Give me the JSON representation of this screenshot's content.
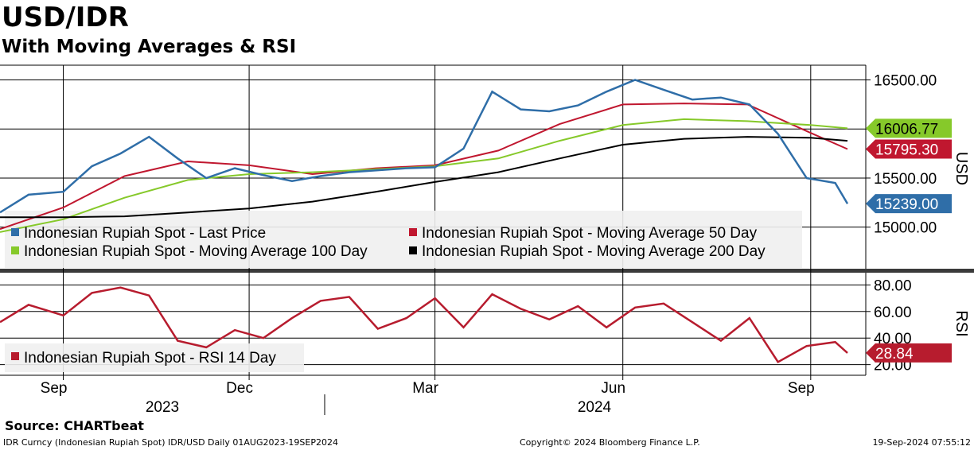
{
  "title": "USD/IDR",
  "subtitle": "With Moving Averages & RSI",
  "source": "Source: CHARTbeat",
  "footer": {
    "left": "IDR Curncy (Indonesian Rupiah Spot) IDR/USD  Daily 01AUG2023-19SEP2024",
    "center": "Copyright© 2024 Bloomberg Finance L.P.",
    "right": "19-Sep-2024 07:55:12"
  },
  "colors": {
    "price": "#2f6ea8",
    "ma50": "#c0172f",
    "ma100": "#86c92a",
    "ma200": "#000000",
    "rsi": "#b71c2e"
  },
  "chart_data": [
    {
      "type": "line",
      "title": "USD/IDR",
      "ylabel": "USD",
      "ylim": [
        14560,
        16650
      ],
      "yticks": [
        15000,
        15500,
        16000,
        16500
      ],
      "ytick_labels": [
        "15000.00",
        "15500.00",
        "",
        "16500.00"
      ],
      "date_range": [
        "2023-08-01",
        "2024-09-19"
      ],
      "x_ticks": [
        "Sep",
        "Dec",
        "Mar",
        "Jun",
        "Sep"
      ],
      "x_tick_dates": [
        "2023-09-01",
        "2023-12-01",
        "2024-03-01",
        "2024-06-01",
        "2024-09-01"
      ],
      "years": [
        "2023",
        "2024"
      ],
      "legend": [
        "Indonesian Rupiah Spot - Last Price",
        "Indonesian Rupiah Spot - Moving Average 50 Day",
        "Indonesian Rupiah Spot - Moving Average 100 Day",
        "Indonesian Rupiah Spot - Moving Average 200 Day"
      ],
      "end_labels": [
        {
          "name": "Moving Average 100 Day",
          "value": 16006.77,
          "label": "16006.77"
        },
        {
          "name": "Moving Average 50 Day",
          "value": 15795.3,
          "label": "15795.30"
        },
        {
          "name": "Last Price",
          "value": 15239.0,
          "label": "15239.00"
        }
      ],
      "series": [
        {
          "name": "Last Price",
          "dates": [
            "2023-08-01",
            "2023-08-15",
            "2023-09-01",
            "2023-09-15",
            "2023-09-29",
            "2023-10-13",
            "2023-10-27",
            "2023-11-10",
            "2023-11-24",
            "2023-12-08",
            "2023-12-22",
            "2024-01-05",
            "2024-01-19",
            "2024-02-02",
            "2024-02-16",
            "2024-03-01",
            "2024-03-15",
            "2024-03-29",
            "2024-04-12",
            "2024-04-26",
            "2024-05-10",
            "2024-05-24",
            "2024-06-07",
            "2024-06-21",
            "2024-07-05",
            "2024-07-19",
            "2024-08-02",
            "2024-08-16",
            "2024-08-30",
            "2024-09-13",
            "2024-09-19"
          ],
          "values": [
            15150,
            15330,
            15360,
            15620,
            15750,
            15920,
            15700,
            15500,
            15600,
            15530,
            15470,
            15520,
            15560,
            15580,
            15600,
            15610,
            15800,
            16380,
            16200,
            16180,
            16240,
            16380,
            16500,
            16400,
            16300,
            16320,
            16250,
            15950,
            15500,
            15450,
            15239
          ]
        },
        {
          "name": "Moving Average 50 Day",
          "dates": [
            "2023-08-01",
            "2023-09-01",
            "2023-10-01",
            "2023-11-01",
            "2023-12-01",
            "2024-01-01",
            "2024-02-01",
            "2024-03-01",
            "2024-04-01",
            "2024-05-01",
            "2024-06-01",
            "2024-07-01",
            "2024-08-01",
            "2024-09-01",
            "2024-09-19"
          ],
          "values": [
            14980,
            15200,
            15520,
            15670,
            15630,
            15540,
            15600,
            15630,
            15780,
            16050,
            16250,
            16260,
            16250,
            15960,
            15795.3
          ]
        },
        {
          "name": "Moving Average 100 Day",
          "dates": [
            "2023-08-01",
            "2023-09-01",
            "2023-10-01",
            "2023-11-01",
            "2023-12-01",
            "2024-01-01",
            "2024-02-01",
            "2024-03-01",
            "2024-04-01",
            "2024-05-01",
            "2024-06-01",
            "2024-07-01",
            "2024-08-01",
            "2024-09-01",
            "2024-09-19"
          ],
          "values": [
            14950,
            15080,
            15300,
            15480,
            15540,
            15560,
            15590,
            15620,
            15700,
            15880,
            16040,
            16100,
            16080,
            16040,
            16006.77
          ]
        },
        {
          "name": "Moving Average 200 Day",
          "dates": [
            "2023-08-01",
            "2023-09-01",
            "2023-10-01",
            "2023-11-01",
            "2023-12-01",
            "2024-01-01",
            "2024-02-01",
            "2024-03-01",
            "2024-04-01",
            "2024-05-01",
            "2024-06-01",
            "2024-07-01",
            "2024-08-01",
            "2024-09-01",
            "2024-09-19"
          ],
          "values": [
            15100,
            15100,
            15110,
            15150,
            15190,
            15260,
            15360,
            15460,
            15560,
            15700,
            15840,
            15900,
            15920,
            15910,
            15880
          ]
        }
      ]
    },
    {
      "type": "line",
      "title": "RSI",
      "ylabel": "RSI",
      "ylim": [
        12,
        88
      ],
      "yticks": [
        20,
        40,
        60,
        80
      ],
      "ytick_labels": [
        "20.00",
        "40.00",
        "60.00",
        "80.00"
      ],
      "legend": [
        "Indonesian Rupiah Spot - RSI 14 Day"
      ],
      "end_labels": [
        {
          "name": "RSI 14 Day",
          "value": 28.84,
          "label": "28.84"
        }
      ],
      "series": [
        {
          "name": "RSI 14 Day",
          "dates": [
            "2023-08-01",
            "2023-08-15",
            "2023-09-01",
            "2023-09-15",
            "2023-09-29",
            "2023-10-13",
            "2023-10-27",
            "2023-11-10",
            "2023-11-24",
            "2023-12-08",
            "2023-12-22",
            "2024-01-05",
            "2024-01-19",
            "2024-02-02",
            "2024-02-16",
            "2024-03-01",
            "2024-03-15",
            "2024-03-29",
            "2024-04-12",
            "2024-04-26",
            "2024-05-10",
            "2024-05-24",
            "2024-06-07",
            "2024-06-21",
            "2024-07-05",
            "2024-07-19",
            "2024-08-02",
            "2024-08-16",
            "2024-08-30",
            "2024-09-13",
            "2024-09-19"
          ],
          "values": [
            52,
            65,
            57,
            74,
            78,
            72,
            38,
            33,
            46,
            40,
            55,
            68,
            71,
            47,
            55,
            70,
            48,
            73,
            62,
            54,
            64,
            48,
            63,
            66,
            52,
            38,
            55,
            22,
            34,
            37,
            28.84
          ]
        }
      ]
    }
  ]
}
